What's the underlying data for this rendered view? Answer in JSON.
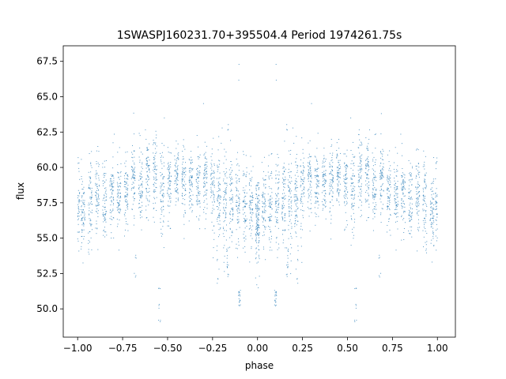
{
  "chart_data": {
    "type": "scatter",
    "title": "1SWASPJ160231.70+395504.4 Period 1974261.75s",
    "xlabel": "phase",
    "ylabel": "flux",
    "xlim": [
      -1.08,
      1.1
    ],
    "ylim": [
      48.0,
      68.6
    ],
    "xticks": [
      -1.0,
      -0.75,
      -0.5,
      -0.25,
      0.0,
      0.25,
      0.5,
      0.75,
      1.0
    ],
    "xtick_labels": [
      "−1.00",
      "−0.75",
      "−0.50",
      "−0.25",
      "0.00",
      "0.25",
      "0.50",
      "0.75",
      "1.00"
    ],
    "yticks": [
      50.0,
      52.5,
      55.0,
      57.5,
      60.0,
      62.5,
      65.0,
      67.5
    ],
    "ytick_labels": [
      "50.0",
      "52.5",
      "55.0",
      "57.5",
      "60.0",
      "62.5",
      "65.0",
      "67.5"
    ],
    "grid": false,
    "legend": "none",
    "marker_color": "#1f77b4",
    "phase_range": [
      -1.0,
      1.0
    ],
    "description_of_data": "phase-folded light curve, mirrored about phase 0",
    "clusters": [
      {
        "x": 0.0,
        "mean": 56.6,
        "spread": 1.6
      },
      {
        "x": 0.035,
        "mean": 57.0,
        "spread": 1.5
      },
      {
        "x": 0.07,
        "mean": 57.6,
        "spread": 1.4
      },
      {
        "x": 0.11,
        "mean": 57.4,
        "spread": 1.5
      },
      {
        "x": 0.145,
        "mean": 57.8,
        "spread": 1.6
      },
      {
        "x": 0.18,
        "mean": 57.6,
        "spread": 1.8
      },
      {
        "x": 0.215,
        "mean": 58.0,
        "spread": 1.4
      },
      {
        "x": 0.25,
        "mean": 58.3,
        "spread": 1.3
      },
      {
        "x": 0.29,
        "mean": 59.0,
        "spread": 1.2
      },
      {
        "x": 0.33,
        "mean": 58.7,
        "spread": 1.2
      },
      {
        "x": 0.37,
        "mean": 59.3,
        "spread": 1.2
      },
      {
        "x": 0.41,
        "mean": 59.0,
        "spread": 1.3
      },
      {
        "x": 0.45,
        "mean": 59.5,
        "spread": 1.2
      },
      {
        "x": 0.49,
        "mean": 58.8,
        "spread": 1.4
      },
      {
        "x": 0.53,
        "mean": 58.5,
        "spread": 1.5
      },
      {
        "x": 0.57,
        "mean": 59.2,
        "spread": 1.3
      },
      {
        "x": 0.61,
        "mean": 59.4,
        "spread": 1.3
      },
      {
        "x": 0.65,
        "mean": 58.6,
        "spread": 1.4
      },
      {
        "x": 0.69,
        "mean": 59.3,
        "spread": 1.2
      },
      {
        "x": 0.73,
        "mean": 58.4,
        "spread": 1.3
      },
      {
        "x": 0.77,
        "mean": 58.0,
        "spread": 1.3
      },
      {
        "x": 0.81,
        "mean": 58.3,
        "spread": 1.3
      },
      {
        "x": 0.85,
        "mean": 57.5,
        "spread": 1.4
      },
      {
        "x": 0.89,
        "mean": 57.9,
        "spread": 1.4
      },
      {
        "x": 0.93,
        "mean": 57.2,
        "spread": 1.5
      },
      {
        "x": 0.97,
        "mean": 56.8,
        "spread": 1.5
      },
      {
        "x": 1.0,
        "mean": 57.2,
        "spread": 1.6
      }
    ],
    "dips": [
      {
        "x": 0.1,
        "values": [
          50.5,
          50.8,
          51.0,
          50.3,
          51.2,
          50.6
        ]
      },
      {
        "x": 0.165,
        "values": [
          53.5,
          52.8,
          54.0,
          53.0,
          52.5
        ]
      },
      {
        "x": 0.22,
        "values": [
          53.0,
          52.0,
          54.5
        ]
      },
      {
        "x": 0.545,
        "values": [
          51.5,
          50.0,
          49.0
        ]
      },
      {
        "x": 0.68,
        "values": [
          52.5,
          53.5
        ]
      }
    ],
    "outliers_high": [
      {
        "x": 0.165,
        "values": [
          62.8,
          63.2,
          62.5
        ]
      },
      {
        "x": 0.2,
        "values": [
          62.0,
          62.5
        ]
      },
      {
        "x": 0.1,
        "values": [
          67.0,
          66.2
        ]
      },
      {
        "x": 0.3,
        "values": [
          64.5
        ]
      },
      {
        "x": 0.62,
        "values": [
          62.0,
          63.0
        ]
      },
      {
        "x": 0.52,
        "values": [
          63.5
        ]
      },
      {
        "x": 0.8,
        "values": [
          62.5
        ]
      }
    ]
  }
}
